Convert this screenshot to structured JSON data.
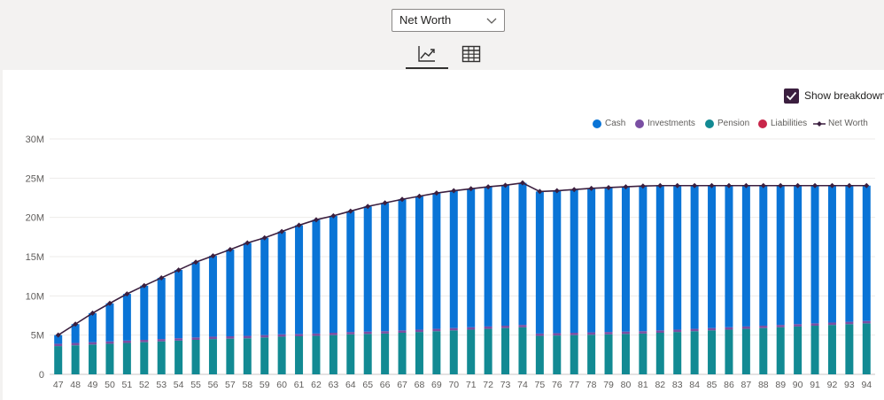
{
  "dropdown": {
    "selected": "Net Worth"
  },
  "view_tabs": [
    {
      "name": "chart",
      "icon": "chart-line-icon",
      "active": true
    },
    {
      "name": "table",
      "icon": "table-grid-icon",
      "active": false
    }
  ],
  "breakdown": {
    "label": "Show breakdown",
    "checked": true
  },
  "colors": {
    "cash": "#0a74d6",
    "investments": "#7a4fa3",
    "pension": "#128a93",
    "liabilities": "#c8264a",
    "net_worth": "#3b1f3f"
  },
  "legend": [
    {
      "label": "Cash",
      "color": "#0a74d6",
      "kind": "dot"
    },
    {
      "label": "Investments",
      "color": "#7a4fa3",
      "kind": "dot"
    },
    {
      "label": "Pension",
      "color": "#128a93",
      "kind": "dot"
    },
    {
      "label": "Liabilities",
      "color": "#c8264a",
      "kind": "dot"
    },
    {
      "label": "Net Worth",
      "color": "#3b1f3f",
      "kind": "line"
    }
  ],
  "chart_data": {
    "type": "bar",
    "title": "",
    "xlabel": "",
    "ylabel": "",
    "ylim": [
      0,
      30000000
    ],
    "yticks": [
      0,
      5000000,
      10000000,
      15000000,
      20000000,
      25000000,
      30000000
    ],
    "ytick_labels": [
      "0",
      "5M",
      "10M",
      "15M",
      "20M",
      "25M",
      "30M"
    ],
    "categories": [
      "47",
      "48",
      "49",
      "50",
      "51",
      "52",
      "53",
      "54",
      "55",
      "56",
      "57",
      "58",
      "59",
      "60",
      "61",
      "62",
      "63",
      "64",
      "65",
      "66",
      "67",
      "68",
      "69",
      "70",
      "71",
      "72",
      "73",
      "74",
      "75",
      "76",
      "77",
      "78",
      "79",
      "80",
      "81",
      "82",
      "83",
      "84",
      "85",
      "86",
      "87",
      "88",
      "89",
      "90",
      "91",
      "92",
      "93",
      "94"
    ],
    "series": [
      {
        "name": "Pension",
        "stack": true,
        "values": [
          3600000,
          3700000,
          3800000,
          3900000,
          4000000,
          4100000,
          4200000,
          4300000,
          4400000,
          4500000,
          4550000,
          4600000,
          4700000,
          4800000,
          4850000,
          4900000,
          5000000,
          5100000,
          5150000,
          5200000,
          5300000,
          5400000,
          5500000,
          5600000,
          5700000,
          5800000,
          5900000,
          6000000,
          4900000,
          4950000,
          5000000,
          5050000,
          5100000,
          5150000,
          5200000,
          5300000,
          5400000,
          5500000,
          5600000,
          5700000,
          5800000,
          5900000,
          6000000,
          6100000,
          6200000,
          6300000,
          6400000,
          6500000
        ]
      },
      {
        "name": "Investments",
        "stack": true,
        "values": [
          300000,
          300000,
          300000,
          300000,
          300000,
          300000,
          300000,
          300000,
          300000,
          300000,
          300000,
          300000,
          300000,
          300000,
          300000,
          300000,
          300000,
          300000,
          300000,
          300000,
          300000,
          300000,
          300000,
          300000,
          300000,
          300000,
          300000,
          300000,
          300000,
          300000,
          300000,
          300000,
          300000,
          300000,
          300000,
          300000,
          300000,
          300000,
          300000,
          300000,
          300000,
          300000,
          300000,
          300000,
          300000,
          300000,
          300000,
          300000
        ]
      },
      {
        "name": "Cash",
        "stack": true,
        "values": [
          1100000,
          2400000,
          3700000,
          4850000,
          5950000,
          6900000,
          7800000,
          8700000,
          9600000,
          10300000,
          11050000,
          11850000,
          12400000,
          13100000,
          13850000,
          14500000,
          14900000,
          15400000,
          15950000,
          16350000,
          16700000,
          17000000,
          17300000,
          17500000,
          17650000,
          17800000,
          17900000,
          18100000,
          18100000,
          18150000,
          18250000,
          18350000,
          18400000,
          18450000,
          18500000,
          18450000,
          18350000,
          18250000,
          18150000,
          18050000,
          17950000,
          17850000,
          17750000,
          17650000,
          17550000,
          17450000,
          17350000,
          17250000
        ]
      },
      {
        "name": "Net Worth",
        "type": "line",
        "values": [
          5000000,
          6400000,
          7800000,
          9050000,
          10250000,
          11300000,
          12300000,
          13300000,
          14300000,
          15100000,
          15900000,
          16750000,
          17400000,
          18200000,
          19000000,
          19700000,
          20200000,
          20800000,
          21400000,
          21850000,
          22300000,
          22700000,
          23100000,
          23400000,
          23650000,
          23900000,
          24100000,
          24400000,
          23300000,
          23400000,
          23550000,
          23700000,
          23800000,
          23900000,
          24000000,
          24050000,
          24050000,
          24050000,
          24050000,
          24050000,
          24050000,
          24050000,
          24050000,
          24050000,
          24050000,
          24050000,
          24050000,
          24050000
        ]
      }
    ]
  }
}
